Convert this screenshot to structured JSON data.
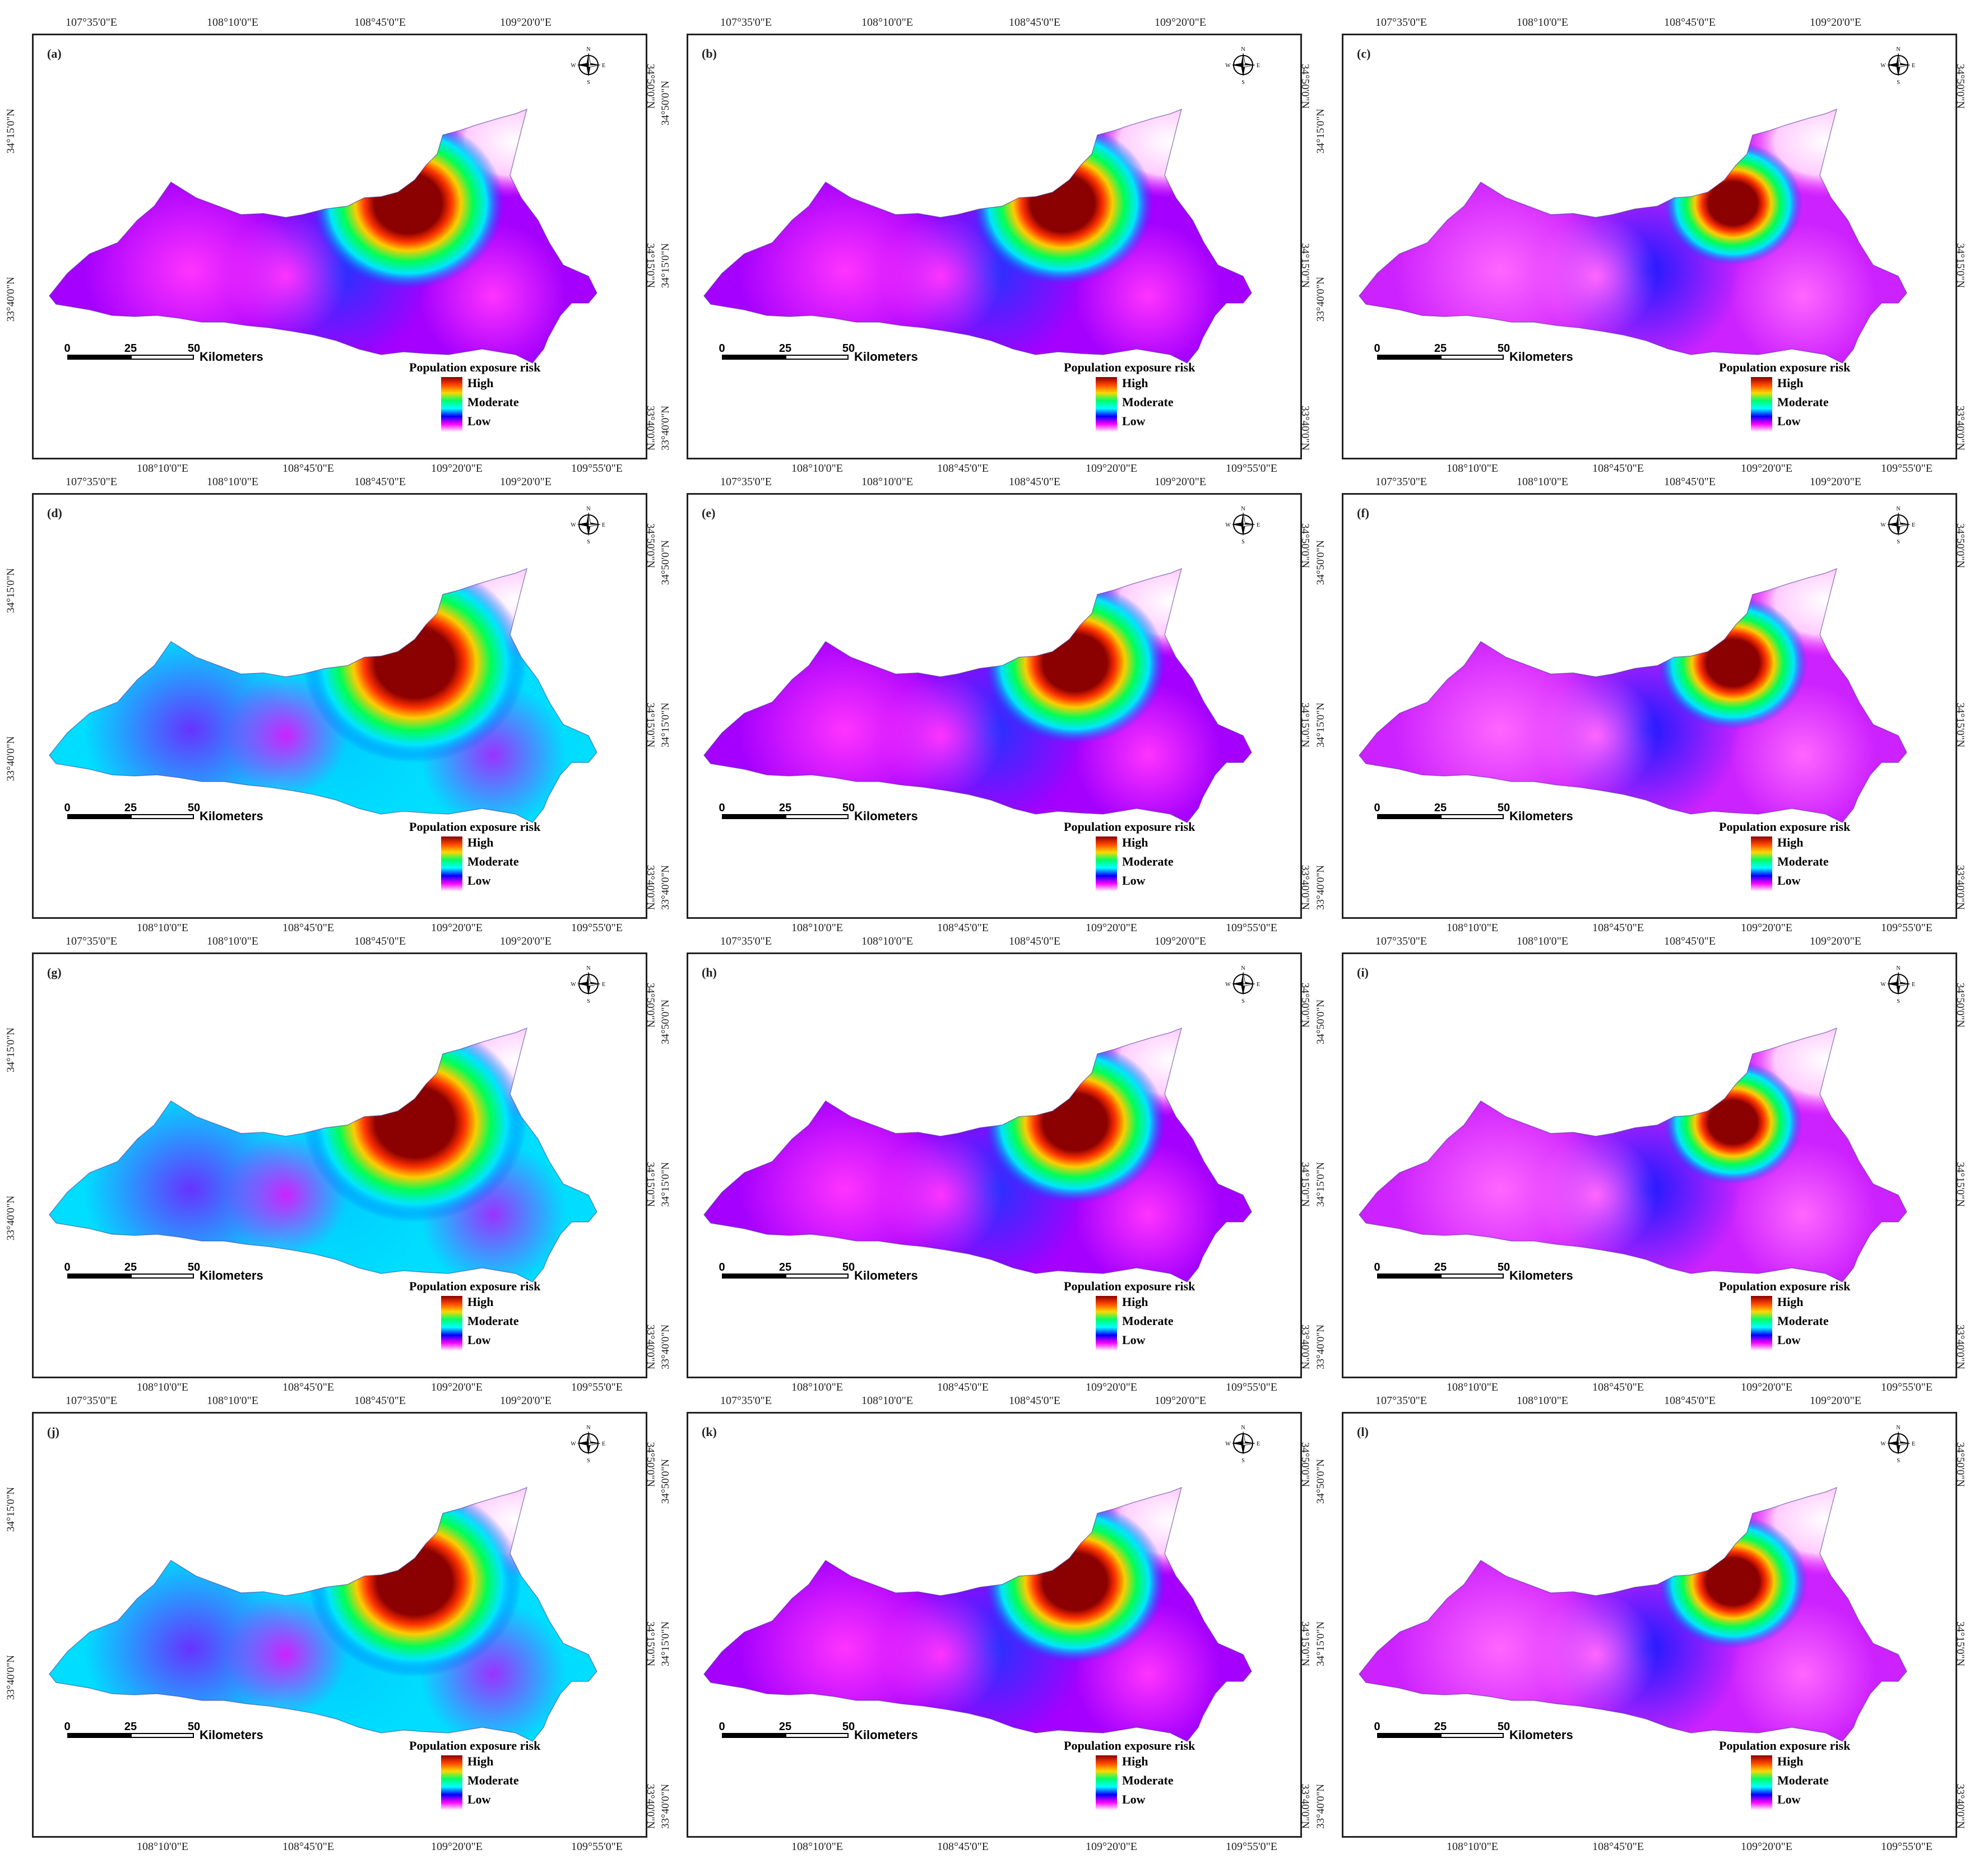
{
  "figure": {
    "panels": [
      {
        "id": "a",
        "letter": "(a)",
        "top_ticks": [
          "107°35'0\"E",
          "108°10'0\"E",
          "108°45'0\"E",
          "109°20'0\"E"
        ],
        "bottom_ticks": [
          "108°10'0\"E",
          "108°45'0\"E",
          "109°20'0\"E",
          "109°55'0\"E"
        ],
        "left_ticks": [
          "34°15'0\"N",
          "33°40'0\"N"
        ],
        "right_ticks": [
          "34°50'0\"N",
          "34°15'0\"N",
          "33°40'0\"N"
        ]
      },
      {
        "id": "b",
        "letter": "(b)",
        "top_ticks": [
          "107°35'0\"E",
          "108°10'0\"E",
          "108°45'0\"E",
          "109°20'0\"E"
        ],
        "bottom_ticks": [
          "108°10'0\"E",
          "108°45'0\"E",
          "109°20'0\"E",
          "109°55'0\"E"
        ],
        "left_ticks": [
          "34°50'0\"N",
          "34°15'0\"N",
          "33°40'0\"N"
        ],
        "right_ticks": [
          "34°50'0\"N",
          "34°15'0\"N",
          "33°40'0\"N"
        ]
      },
      {
        "id": "c",
        "letter": "(c)",
        "top_ticks": [
          "107°35'0\"E",
          "108°10'0\"E",
          "108°45'0\"E",
          "109°20'0\"E"
        ],
        "bottom_ticks": [
          "108°10'0\"E",
          "108°45'0\"E",
          "109°20'0\"E",
          "109°55'0\"E"
        ],
        "left_ticks": [
          "34°15'0\"N",
          "33°40'0\"N"
        ],
        "right_ticks": [
          "34°50'0\"N",
          "34°15'0\"N",
          "33°40'0\"N"
        ]
      },
      {
        "id": "d",
        "letter": "(d)",
        "top_ticks": [
          "107°35'0\"E",
          "108°10'0\"E",
          "108°45'0\"E",
          "109°20'0\"E"
        ],
        "bottom_ticks": [
          "108°10'0\"E",
          "108°45'0\"E",
          "109°20'0\"E",
          "109°55'0\"E"
        ],
        "left_ticks": [
          "34°15'0\"N",
          "33°40'0\"N"
        ],
        "right_ticks": [
          "34°50'0\"N",
          "34°15'0\"N",
          "33°40'0\"N"
        ]
      },
      {
        "id": "e",
        "letter": "(e)",
        "top_ticks": [
          "107°35'0\"E",
          "108°10'0\"E",
          "108°45'0\"E",
          "109°20'0\"E"
        ],
        "bottom_ticks": [
          "108°10'0\"E",
          "108°45'0\"E",
          "109°20'0\"E",
          "109°55'0\"E"
        ],
        "left_ticks": [
          "34°50'0\"N",
          "34°15'0\"N",
          "33°40'0\"N"
        ],
        "right_ticks": [
          "34°50'0\"N",
          "34°15'0\"N",
          "33°40'0\"N"
        ]
      },
      {
        "id": "f",
        "letter": "(f)",
        "top_ticks": [
          "107°35'0\"E",
          "108°10'0\"E",
          "108°45'0\"E",
          "109°20'0\"E"
        ],
        "bottom_ticks": [
          "108°10'0\"E",
          "108°45'0\"E",
          "109°20'0\"E",
          "109°55'0\"E"
        ],
        "left_ticks": [
          "34°50'0\"N",
          "34°15'0\"N",
          "33°40'0\"N"
        ],
        "right_ticks": [
          "34°50'0\"N",
          "34°15'0\"N",
          "33°40'0\"N"
        ]
      },
      {
        "id": "g",
        "letter": "(g)",
        "top_ticks": [
          "107°35'0\"E",
          "108°10'0\"E",
          "108°45'0\"E",
          "109°20'0\"E"
        ],
        "bottom_ticks": [
          "108°10'0\"E",
          "108°45'0\"E",
          "109°20'0\"E",
          "109°55'0\"E"
        ],
        "left_ticks": [
          "34°15'0\"N",
          "33°40'0\"N"
        ],
        "right_ticks": [
          "34°50'0\"N",
          "34°15'0\"N",
          "33°40'0\"N"
        ]
      },
      {
        "id": "h",
        "letter": "(h)",
        "top_ticks": [
          "107°35'0\"E",
          "108°10'0\"E",
          "108°45'0\"E",
          "109°20'0\"E"
        ],
        "bottom_ticks": [
          "108°10'0\"E",
          "108°45'0\"E",
          "109°20'0\"E",
          "109°55'0\"E"
        ],
        "left_ticks": [
          "34°50'0\"N",
          "34°15'0\"N",
          "33°40'0\"N"
        ],
        "right_ticks": [
          "34°50'0\"N",
          "34°15'0\"N",
          "33°40'0\"N"
        ]
      },
      {
        "id": "i",
        "letter": "(i)",
        "top_ticks": [
          "107°35'0\"E",
          "108°10'0\"E",
          "108°45'0\"E",
          "109°20'0\"E"
        ],
        "bottom_ticks": [
          "108°10'0\"E",
          "108°45'0\"E",
          "109°20'0\"E",
          "109°55'0\"E"
        ],
        "left_ticks": [
          "34°50'0\"N",
          "34°15'0\"N",
          "33°40'0\"N"
        ],
        "right_ticks": [
          "34°50'0\"N",
          "34°15'0\"N",
          "33°40'0\"N"
        ]
      },
      {
        "id": "j",
        "letter": "(j)",
        "top_ticks": [
          "107°35'0\"E",
          "108°10'0\"E",
          "108°45'0\"E",
          "109°20'0\"E"
        ],
        "bottom_ticks": [
          "108°10'0\"E",
          "108°45'0\"E",
          "109°20'0\"E",
          "109°55'0\"E"
        ],
        "left_ticks": [
          "34°15'0\"N",
          "33°40'0\"N"
        ],
        "right_ticks": [
          "34°50'0\"N",
          "34°15'0\"N",
          "33°40'0\"N"
        ]
      },
      {
        "id": "k",
        "letter": "(k)",
        "top_ticks": [
          "107°35'0\"E",
          "108°10'0\"E",
          "108°45'0\"E",
          "109°20'0\"E"
        ],
        "bottom_ticks": [
          "108°10'0\"E",
          "108°45'0\"E",
          "109°20'0\"E",
          "109°55'0\"E"
        ],
        "left_ticks": [
          "34°50'0\"N",
          "34°15'0\"N",
          "33°40'0\"N"
        ],
        "right_ticks": [
          "34°50'0\"N",
          "34°15'0\"N",
          "33°40'0\"N"
        ]
      },
      {
        "id": "l",
        "letter": "(l)",
        "top_ticks": [
          "107°35'0\"E",
          "108°10'0\"E",
          "108°45'0\"E",
          "109°20'0\"E"
        ],
        "bottom_ticks": [
          "108°10'0\"E",
          "108°45'0\"E",
          "109°20'0\"E",
          "109°55'0\"E"
        ],
        "left_ticks": [
          "34°50'0\"N",
          "34°15'0\"N",
          "33°40'0\"N"
        ],
        "right_ticks": [
          "34°50'0\"N",
          "34°15'0\"N",
          "33°40'0\"N"
        ]
      }
    ]
  },
  "scale_bar": {
    "ticks": [
      "0",
      "25",
      "50"
    ],
    "unit": "Kilometers"
  },
  "legend": {
    "title": "Population exposure risk",
    "levels": [
      "High",
      "Moderate",
      "Low"
    ],
    "ramp_colors": [
      "#8b0000",
      "#ff4500",
      "#ffd700",
      "#00ff66",
      "#00ffff",
      "#0000ff",
      "#ff00ff",
      "#ffffff"
    ]
  },
  "compass": {
    "north": "N",
    "south": "S",
    "east": "E",
    "west": "W"
  }
}
